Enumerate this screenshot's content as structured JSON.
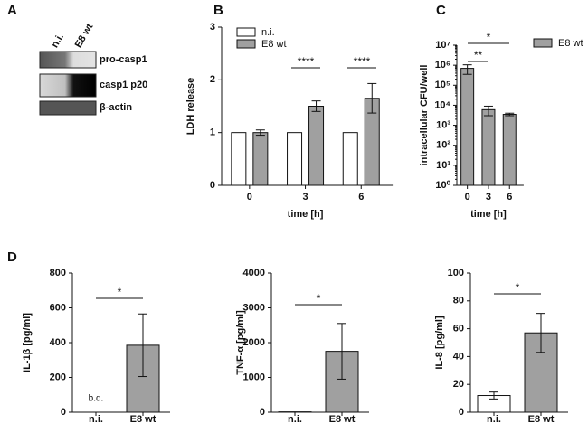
{
  "panels": [
    "A",
    "B",
    "C",
    "D"
  ],
  "blot": {
    "lanes": [
      "n.i.",
      "E8 wt"
    ],
    "bands": [
      "pro-casp1",
      "casp1 p20",
      "β-actin"
    ]
  },
  "chart_data": [
    {
      "type": "bar",
      "ylabel": "LDH release",
      "xlabel": "time [h]",
      "categories": [
        "0",
        "3",
        "6"
      ],
      "series": [
        {
          "name": "n.i.",
          "color": "#ffffff",
          "values": [
            1,
            1,
            1
          ]
        },
        {
          "name": "E8 wt",
          "color": "#a0a0a0",
          "values": [
            1.0,
            1.5,
            1.65
          ],
          "errors": [
            0.05,
            0.1,
            0.28
          ]
        }
      ],
      "ylim": [
        0,
        3
      ],
      "yticks": [
        0,
        1,
        2,
        3
      ],
      "annotations": [
        "****",
        "****"
      ],
      "legend": "top-left"
    },
    {
      "type": "bar",
      "log": true,
      "ylabel": "intracellular CFU/well",
      "xlabel": "time [h]",
      "categories": [
        "0",
        "3",
        "6"
      ],
      "series": [
        {
          "name": "E8 wt",
          "color": "#a0a0a0",
          "values": [
            700000,
            6000,
            3500
          ],
          "errors": [
            350000,
            3000,
            500
          ]
        }
      ],
      "ylim": [
        1,
        10000000
      ],
      "yticks": [
        {
          "value": 1,
          "label": "10⁰"
        },
        {
          "value": 10,
          "label": "10¹"
        },
        {
          "value": 100,
          "label": "10²"
        },
        {
          "value": 1000,
          "label": "10³"
        },
        {
          "value": 10000,
          "label": "10⁴"
        },
        {
          "value": 100000,
          "label": "10⁵"
        },
        {
          "value": 1000000,
          "label": "10⁶"
        },
        {
          "value": 10000000,
          "label": "10⁷"
        }
      ],
      "annotations": [
        "**",
        "*"
      ],
      "legend": "right"
    },
    {
      "type": "bar",
      "ylabel": "IL-1β [pg/ml]",
      "categories": [
        "n.i.",
        "E8 wt"
      ],
      "values": [
        null,
        385
      ],
      "errors": [
        null,
        180
      ],
      "colors": [
        "#ffffff",
        "#a0a0a0"
      ],
      "ylim": [
        0,
        800
      ],
      "yticks": [
        0,
        200,
        400,
        600,
        800
      ],
      "annotations": [
        "b.d.",
        "*"
      ]
    },
    {
      "type": "bar",
      "ylabel": "TNF-α [pg/ml]",
      "categories": [
        "n.i.",
        "E8 wt"
      ],
      "values": [
        10,
        1750
      ],
      "errors": [
        null,
        800
      ],
      "colors": [
        "#ffffff",
        "#a0a0a0"
      ],
      "ylim": [
        0,
        4000
      ],
      "yticks": [
        0,
        1000,
        2000,
        3000,
        4000
      ],
      "annotations": [
        "*"
      ]
    },
    {
      "type": "bar",
      "ylabel": "IL-8 [pg/ml]",
      "categories": [
        "n.i.",
        "E8 wt"
      ],
      "values": [
        12,
        57
      ],
      "errors": [
        2.5,
        14
      ],
      "colors": [
        "#ffffff",
        "#a0a0a0"
      ],
      "ylim": [
        0,
        100
      ],
      "yticks": [
        0,
        20,
        40,
        60,
        80,
        100
      ],
      "annotations": [
        "*"
      ]
    }
  ]
}
